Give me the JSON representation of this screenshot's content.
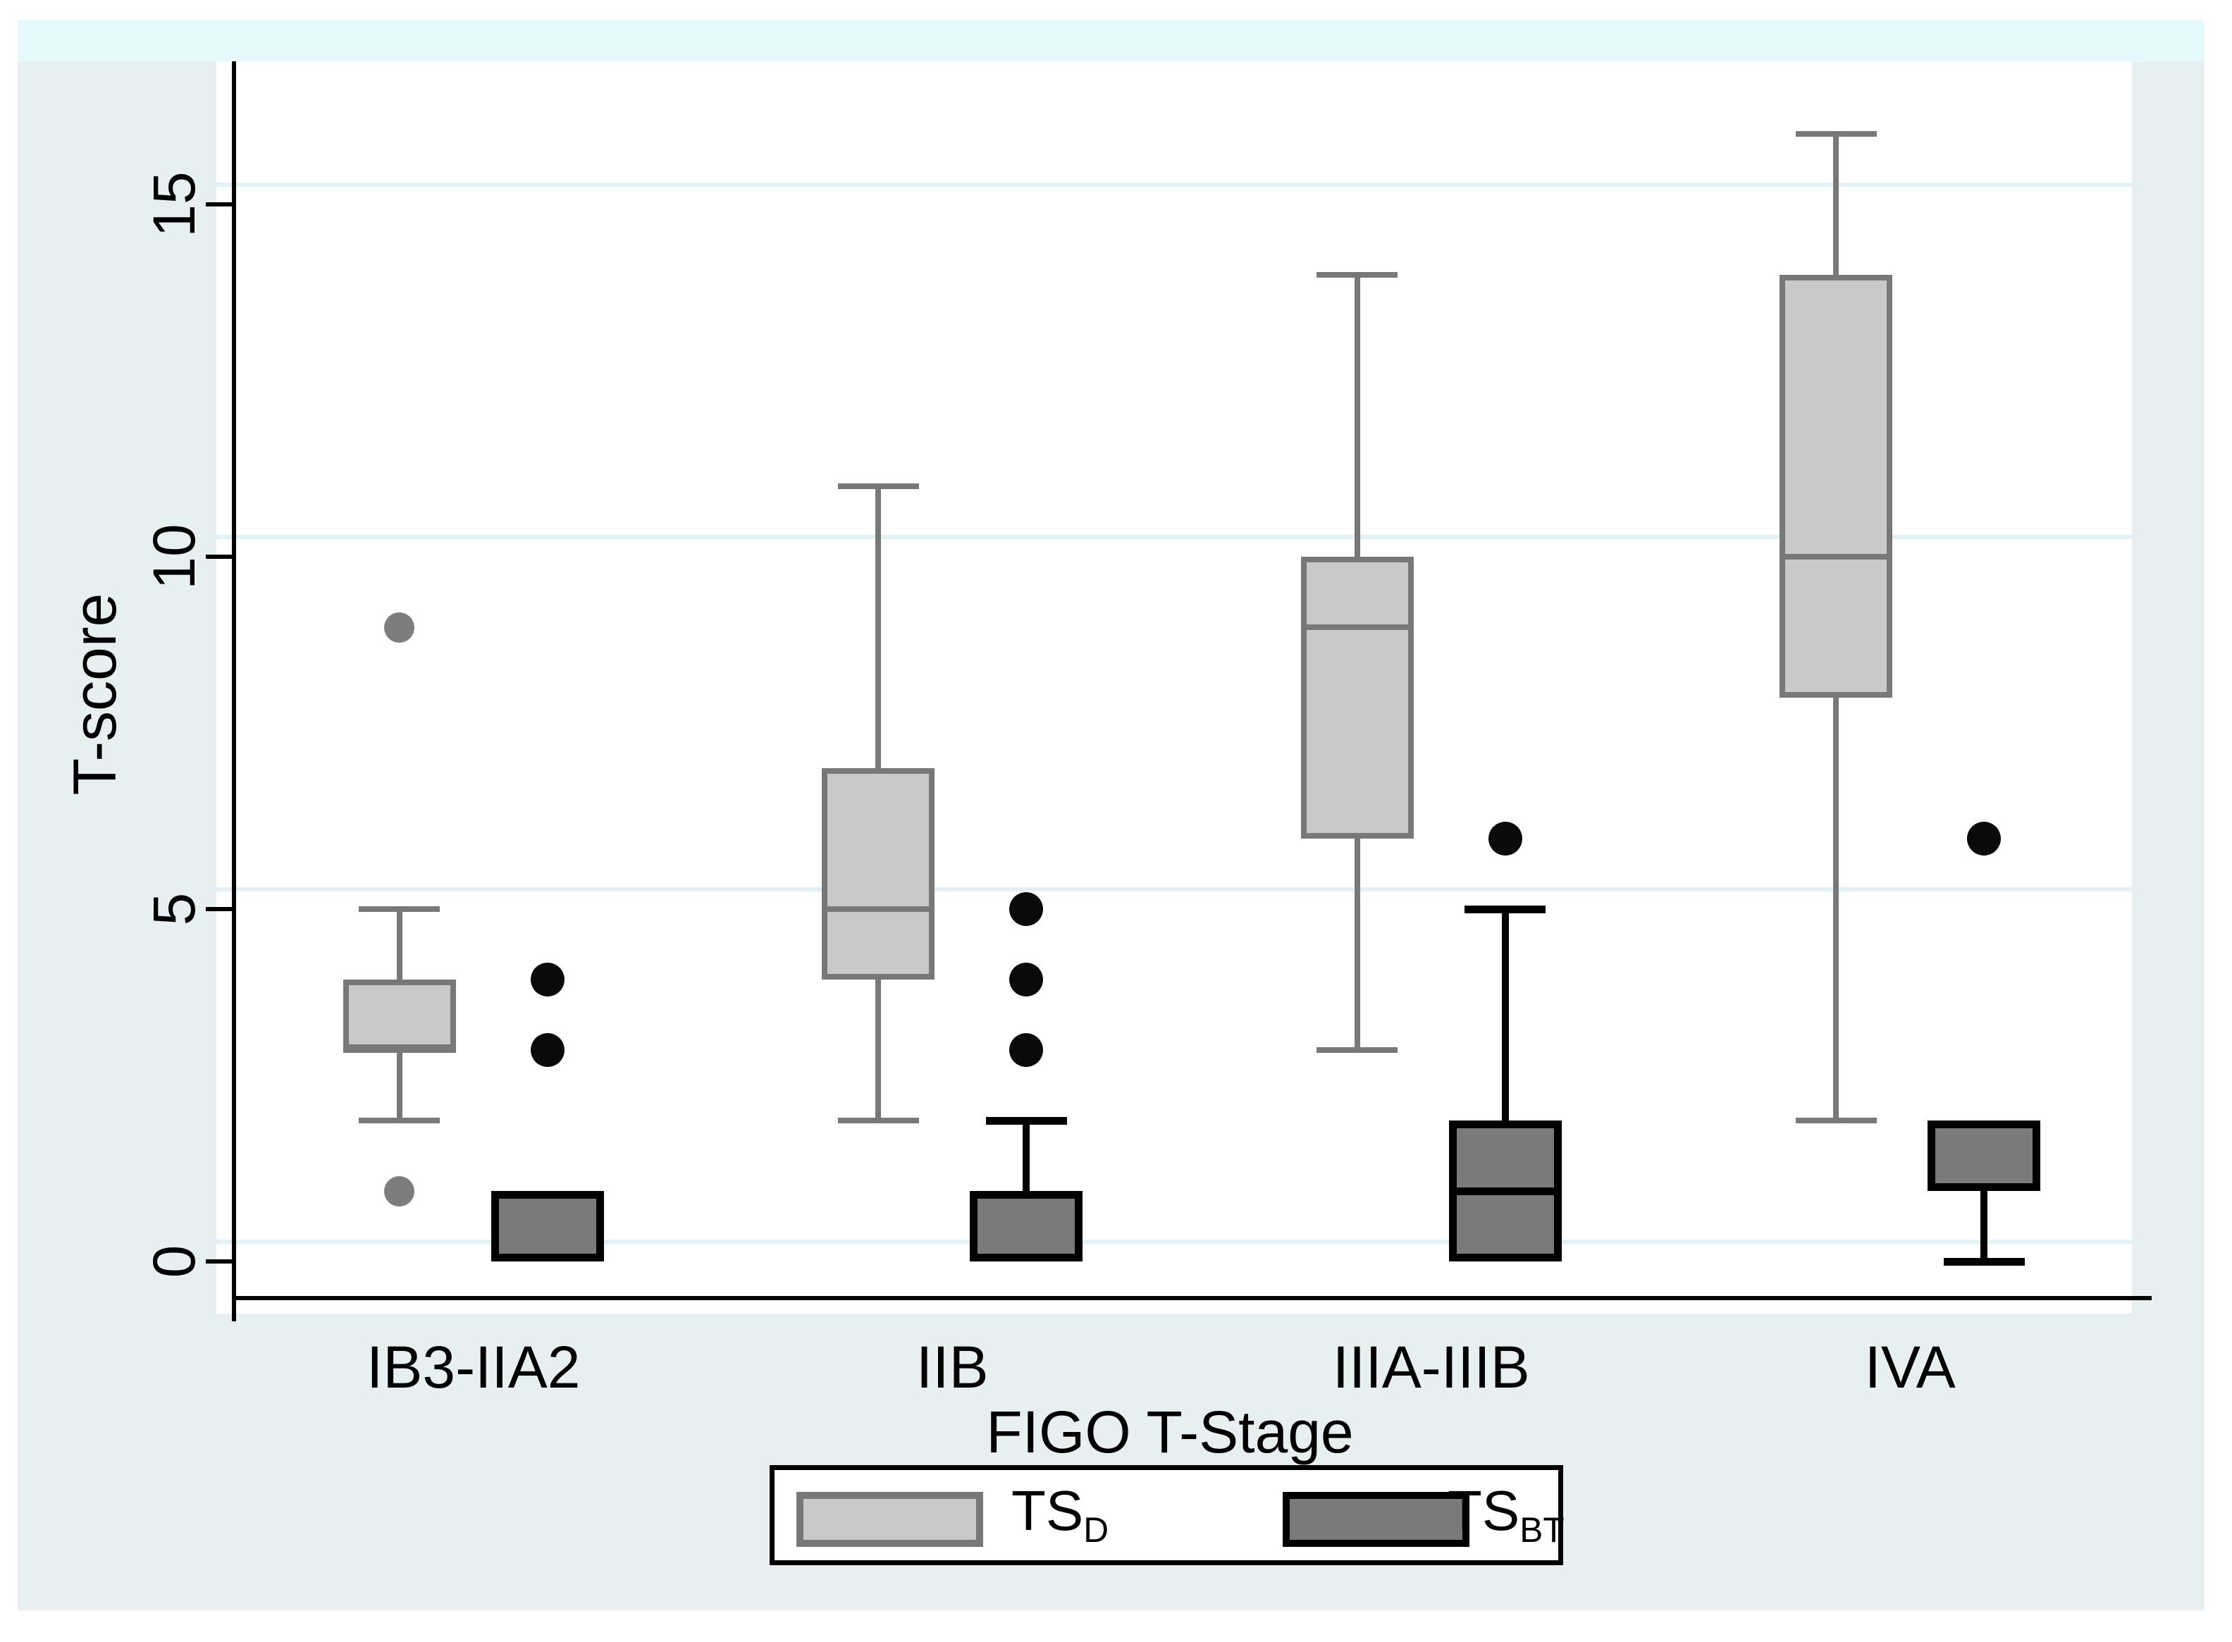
{
  "colors": {
    "page_bg": "#ffffff",
    "top_band": "#e6fafd",
    "figure_bg": "#e8eff1",
    "plot_bg": "#ffffff",
    "gridline": "#e2f1f5",
    "axis_line": "#000000",
    "text": "#000000",
    "legend_bg": "#ffffff",
    "legend_border": "#000000"
  },
  "legend": {
    "entries": [
      {
        "label": "TS",
        "sub": "D"
      },
      {
        "label": "TS",
        "sub": "BT"
      }
    ]
  },
  "chart_data": {
    "type": "box",
    "title": "",
    "xlabel": "FIGO T-Stage",
    "ylabel": "T-score",
    "categories": [
      "IB3-IIA2",
      "IIB",
      "IIIA-IIIB",
      "IVA"
    ],
    "y_ticks": [
      0,
      5,
      10,
      15
    ],
    "ylim": [
      -0.8,
      16.8
    ],
    "grid": true,
    "legend_position": "bottom",
    "series": [
      {
        "name": "TS",
        "subscript": "D",
        "box_fill": "#c9c9c9",
        "box_border": "#787878",
        "whisker_color": "#787878",
        "outlier_color": "#7d7d7d",
        "groups": [
          {
            "category": "IB3-IIA2",
            "whisker_low": 2,
            "q1": 3,
            "median": 3,
            "q3": 4,
            "whisker_high": 5,
            "outliers": [
              9,
              1
            ]
          },
          {
            "category": "IIB",
            "whisker_low": 2,
            "q1": 4,
            "median": 5,
            "q3": 7,
            "whisker_high": 11,
            "outliers": []
          },
          {
            "category": "IIIA-IIIB",
            "whisker_low": 3,
            "q1": 6,
            "median": 9,
            "q3": 10,
            "whisker_high": 14,
            "outliers": []
          },
          {
            "category": "IVA",
            "whisker_low": 2,
            "q1": 8,
            "median": 10,
            "q3": 14,
            "whisker_high": 16,
            "outliers": []
          }
        ]
      },
      {
        "name": "TS",
        "subscript": "BT",
        "box_fill": "#7a7a7a",
        "box_border": "#000000",
        "whisker_color": "#000000",
        "outlier_color": "#0a0a0a",
        "groups": [
          {
            "category": "IB3-IIA2",
            "whisker_low": 0,
            "q1": 0,
            "median": null,
            "q3": 1,
            "whisker_high": 1,
            "outliers": [
              4,
              3
            ]
          },
          {
            "category": "IIB",
            "whisker_low": 0,
            "q1": 0,
            "median": null,
            "q3": 1,
            "whisker_high": 2,
            "outliers": [
              5,
              4,
              3
            ]
          },
          {
            "category": "IIIA-IIIB",
            "whisker_low": 0,
            "q1": 0,
            "median": 1,
            "q3": 2,
            "whisker_high": 5,
            "outliers": [
              6
            ]
          },
          {
            "category": "IVA",
            "whisker_low": 0,
            "q1": 1,
            "median": null,
            "q3": 2,
            "whisker_high": 2,
            "outliers": [
              6
            ]
          }
        ]
      }
    ]
  }
}
